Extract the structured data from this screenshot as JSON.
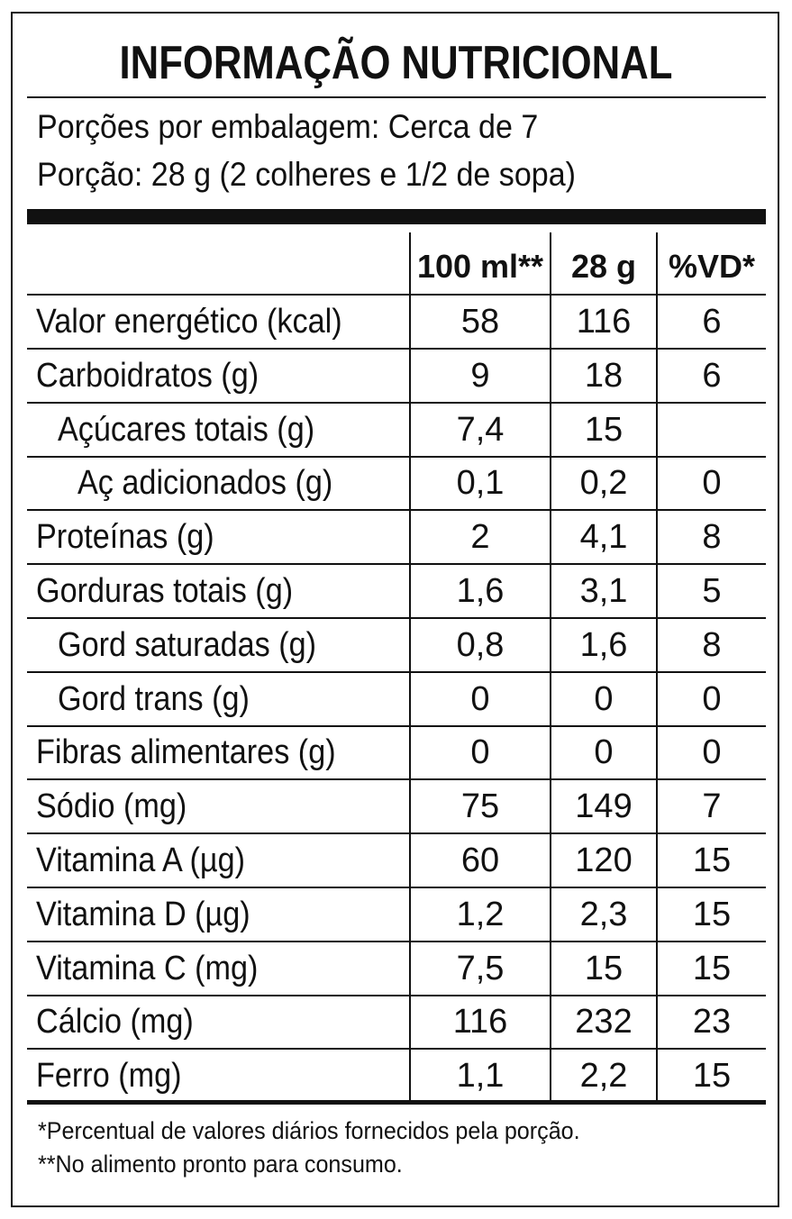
{
  "title": "INFORMAÇÃO NUTRICIONAL",
  "servings_per_package": "Porções por embalagem: Cerca de 7",
  "serving_size": "Porção: 28 g (2 colheres e 1/2 de sopa)",
  "columns": [
    "100 ml**",
    "28 g",
    "%VD*"
  ],
  "rows": [
    {
      "name": "Valor energético (kcal)",
      "per100": "58",
      "portion": "116",
      "dv": "6"
    },
    {
      "name": "Carboidratos (g)",
      "per100": "9",
      "portion": "18",
      "dv": "6"
    },
    {
      "name": "Açúcares totais (g)",
      "per100": "7,4",
      "portion": "15",
      "dv": ""
    },
    {
      "name": "Aç adicionados (g)",
      "per100": "0,1",
      "portion": "0,2",
      "dv": "0"
    },
    {
      "name": "Proteínas (g)",
      "per100": "2",
      "portion": "4,1",
      "dv": "8"
    },
    {
      "name": "Gorduras totais (g)",
      "per100": "1,6",
      "portion": "3,1",
      "dv": "5"
    },
    {
      "name": "Gord saturadas (g)",
      "per100": "0,8",
      "portion": "1,6",
      "dv": "8"
    },
    {
      "name": "Gord trans (g)",
      "per100": "0",
      "portion": "0",
      "dv": "0"
    },
    {
      "name": "Fibras alimentares (g)",
      "per100": "0",
      "portion": "0",
      "dv": "0"
    },
    {
      "name": "Sódio (mg)",
      "per100": "75",
      "portion": "149",
      "dv": "7"
    },
    {
      "name": "Vitamina A (µg)",
      "per100": "60",
      "portion": "120",
      "dv": "15"
    },
    {
      "name": "Vitamina D (µg)",
      "per100": "1,2",
      "portion": "2,3",
      "dv": "15"
    },
    {
      "name": "Vitamina C (mg)",
      "per100": "7,5",
      "portion": "15",
      "dv": "15"
    },
    {
      "name": "Cálcio (mg)",
      "per100": "116",
      "portion": "232",
      "dv": "23"
    },
    {
      "name": "Ferro (mg)",
      "per100": "1,1",
      "portion": "2,2",
      "dv": "15"
    }
  ],
  "footnotes": [
    "*Percentual de valores diários fornecidos pela porção.",
    "**No alimento pronto para consumo."
  ]
}
